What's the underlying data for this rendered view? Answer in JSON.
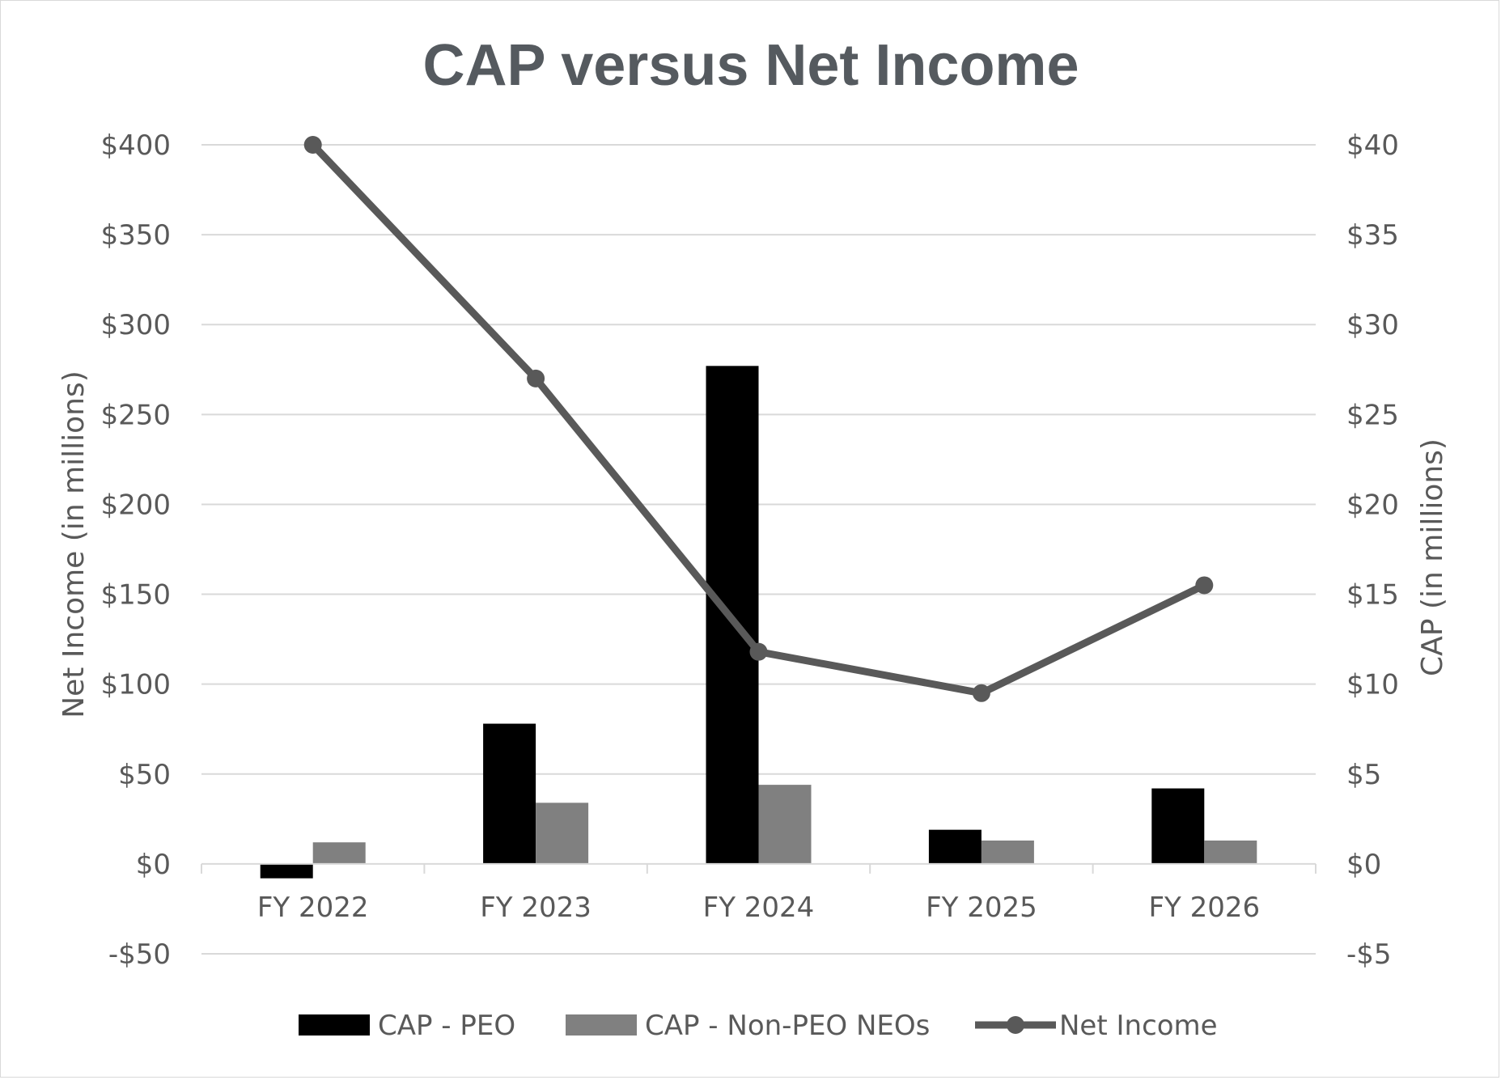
{
  "chart_data": {
    "type": "bar",
    "title": "CAP versus Net Income",
    "categories": [
      "FY 2022",
      "FY 2023",
      "FY 2024",
      "FY 2025",
      "FY 2026"
    ],
    "left_axis": {
      "label": "Net Income (in millions)",
      "range": [
        -50,
        400
      ],
      "ticks": [
        -50,
        0,
        50,
        100,
        150,
        200,
        250,
        300,
        350,
        400
      ],
      "tick_labels": [
        "-$50",
        "$0",
        "$50",
        "$100",
        "$150",
        "$200",
        "$250",
        "$300",
        "$350",
        "$400"
      ]
    },
    "right_axis": {
      "label": "CAP (in millions)",
      "range": [
        -5,
        40
      ],
      "ticks": [
        -5,
        0,
        5,
        10,
        15,
        20,
        25,
        30,
        35,
        40
      ],
      "tick_labels": [
        "-$5",
        "$0",
        "$5",
        "$10",
        "$15",
        "$20",
        "$25",
        "$30",
        "$35",
        "$40"
      ]
    },
    "series": [
      {
        "name": "CAP - PEO",
        "type": "bar",
        "axis": "right",
        "color": "#000000",
        "values": [
          -0.8,
          7.8,
          27.7,
          1.9,
          4.2
        ]
      },
      {
        "name": "CAP - Non-PEO NEOs",
        "type": "bar",
        "axis": "right",
        "color": "#808080",
        "values": [
          1.2,
          3.4,
          4.4,
          1.3,
          1.3
        ]
      },
      {
        "name": "Net Income",
        "type": "line",
        "axis": "left",
        "color": "#595959",
        "values": [
          400,
          270,
          118,
          95,
          155
        ]
      }
    ],
    "grid": true,
    "legend_position": "bottom"
  }
}
